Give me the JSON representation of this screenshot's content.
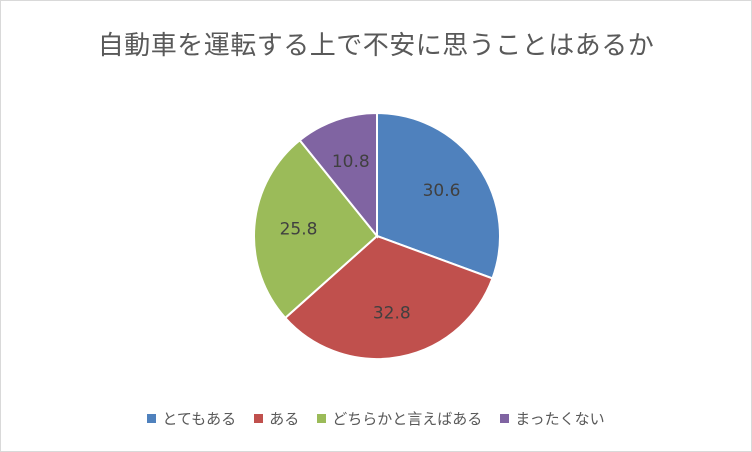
{
  "chart_data": {
    "type": "pie",
    "title": "自動車を運転する上で不安に思うことはあるか",
    "categories": [
      "とてもある",
      "ある",
      "どちらかと言えばある",
      "まったくない"
    ],
    "values": [
      30.6,
      32.8,
      25.8,
      10.8
    ],
    "data_labels": [
      "30.6",
      "32.8",
      "25.8",
      "10.8"
    ],
    "colors": [
      "#4f81bd",
      "#c0504d",
      "#9bbb59",
      "#8064a2"
    ],
    "legend_position": "bottom"
  }
}
